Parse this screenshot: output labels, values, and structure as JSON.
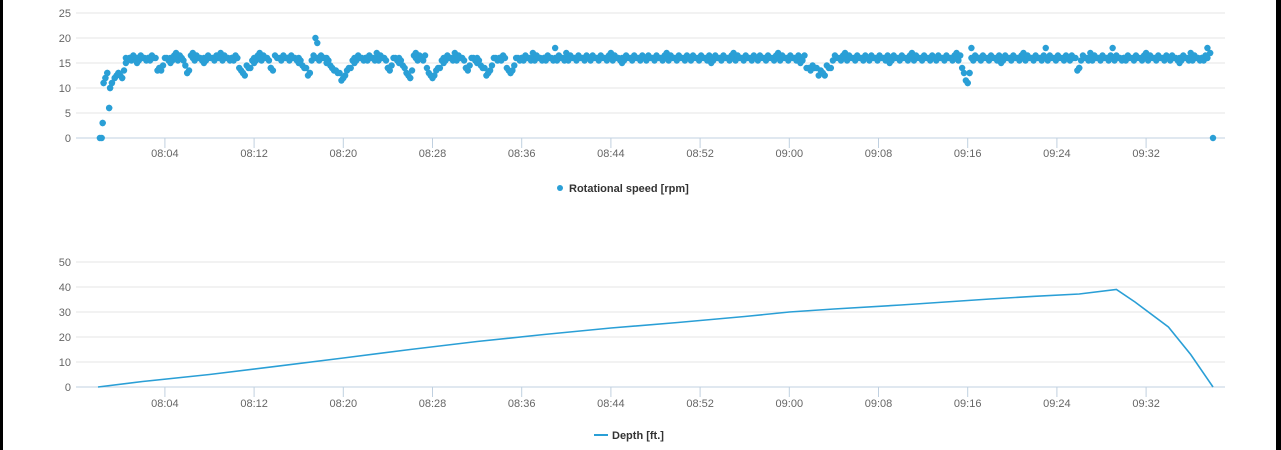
{
  "colors": {
    "series": "#2a9fd6",
    "grid": "#e6e6e6",
    "axis": "#c0d0e0",
    "background": "#ffffff"
  },
  "chart_data": [
    {
      "type": "scatter",
      "title": "",
      "xlabel": "",
      "ylabel": "",
      "x_ticks": [
        "08:04",
        "08:12",
        "08:20",
        "08:28",
        "08:36",
        "08:44",
        "08:52",
        "09:00",
        "09:08",
        "09:16",
        "09:24",
        "09:32"
      ],
      "x_range": [
        "07:58",
        "09:38"
      ],
      "ylim": [
        0,
        25
      ],
      "y_ticks": [
        0,
        5,
        10,
        15,
        20,
        25
      ],
      "grid": true,
      "legend": "bottom-center",
      "series": [
        {
          "name": "Rotational speed [rpm]",
          "points": [
            {
              "x": "07:58:10",
              "y": 0
            },
            {
              "x": "07:58:20",
              "y": 0
            },
            {
              "x": "07:58:25",
              "y": 3
            },
            {
              "x": "07:58:30",
              "y": 11
            },
            {
              "x": "07:58:40",
              "y": 12
            },
            {
              "x": "07:58:50",
              "y": 13
            },
            {
              "x": "07:59:00",
              "y": 6
            },
            {
              "x": "07:59:05",
              "y": 10
            },
            {
              "x": "07:59:15",
              "y": 11
            },
            {
              "x": "07:59:30",
              "y": 12
            },
            {
              "x": "07:59:50",
              "y": 13
            },
            {
              "x": "08:00:10",
              "y": 12
            },
            {
              "x": "08:00:30",
              "y": 15
            },
            {
              "x": "08:00:50",
              "y": 16
            },
            {
              "x": "08:01:30",
              "y": 15
            },
            {
              "x": "08:02:30",
              "y": 16
            },
            {
              "x": "08:03:30",
              "y": 14
            },
            {
              "x": "08:04:30",
              "y": 15
            },
            {
              "x": "08:05:00",
              "y": 17
            },
            {
              "x": "08:05:30",
              "y": 16
            },
            {
              "x": "08:06:00",
              "y": 13
            },
            {
              "x": "08:06:30",
              "y": 17
            },
            {
              "x": "08:07:30",
              "y": 15
            },
            {
              "x": "08:09:00",
              "y": 17
            },
            {
              "x": "08:10:00",
              "y": 16
            },
            {
              "x": "08:11:00",
              "y": 13
            },
            {
              "x": "08:12:00",
              "y": 15
            },
            {
              "x": "08:12:30",
              "y": 17
            },
            {
              "x": "08:13:30",
              "y": 14
            },
            {
              "x": "08:15:00",
              "y": 16
            },
            {
              "x": "08:16:00",
              "y": 15
            },
            {
              "x": "08:17:00",
              "y": 13
            },
            {
              "x": "08:17:30",
              "y": 20
            },
            {
              "x": "08:17:40",
              "y": 19
            },
            {
              "x": "08:18:30",
              "y": 15
            },
            {
              "x": "08:19:00",
              "y": 14
            },
            {
              "x": "08:20:00",
              "y": 12
            },
            {
              "x": "08:21:00",
              "y": 15
            },
            {
              "x": "08:22:00",
              "y": 16
            },
            {
              "x": "08:23:00",
              "y": 17
            },
            {
              "x": "08:24:00",
              "y": 14
            },
            {
              "x": "08:25:00",
              "y": 15
            },
            {
              "x": "08:26:00",
              "y": 12
            },
            {
              "x": "08:26:30",
              "y": 17
            },
            {
              "x": "08:27:00",
              "y": 16
            },
            {
              "x": "08:28:00",
              "y": 12
            },
            {
              "x": "08:29:00",
              "y": 15
            },
            {
              "x": "08:30:00",
              "y": 17
            },
            {
              "x": "08:31:00",
              "y": 14
            },
            {
              "x": "08:32:00",
              "y": 15
            },
            {
              "x": "08:33:00",
              "y": 13
            },
            {
              "x": "08:34:00",
              "y": 16
            },
            {
              "x": "08:35:00",
              "y": 13
            },
            {
              "x": "08:36:00",
              "y": 16
            },
            {
              "x": "08:37:00",
              "y": 17
            },
            {
              "x": "08:38:00",
              "y": 16
            },
            {
              "x": "08:39:00",
              "y": 18
            },
            {
              "x": "08:40:00",
              "y": 17
            },
            {
              "x": "08:42:00",
              "y": 16
            },
            {
              "x": "08:44:00",
              "y": 17
            },
            {
              "x": "08:45:00",
              "y": 15
            },
            {
              "x": "08:47:00",
              "y": 16
            },
            {
              "x": "08:49:00",
              "y": 17
            },
            {
              "x": "08:51:00",
              "y": 16
            },
            {
              "x": "08:53:00",
              "y": 15
            },
            {
              "x": "08:55:00",
              "y": 17
            },
            {
              "x": "08:57:00",
              "y": 16
            },
            {
              "x": "08:59:00",
              "y": 17
            },
            {
              "x": "09:01:00",
              "y": 15
            },
            {
              "x": "09:03:00",
              "y": 13
            },
            {
              "x": "09:05:00",
              "y": 17
            },
            {
              "x": "09:07:00",
              "y": 16
            },
            {
              "x": "09:09:00",
              "y": 15
            },
            {
              "x": "09:11:00",
              "y": 17
            },
            {
              "x": "09:13:00",
              "y": 16
            },
            {
              "x": "09:15:00",
              "y": 17
            },
            {
              "x": "09:16:00",
              "y": 11
            },
            {
              "x": "09:16:10",
              "y": 13
            },
            {
              "x": "09:16:20",
              "y": 18
            },
            {
              "x": "09:17:00",
              "y": 16
            },
            {
              "x": "09:19:00",
              "y": 15
            },
            {
              "x": "09:21:00",
              "y": 17
            },
            {
              "x": "09:23:00",
              "y": 18
            },
            {
              "x": "09:25:00",
              "y": 16
            },
            {
              "x": "09:26:00",
              "y": 14
            },
            {
              "x": "09:27:00",
              "y": 17
            },
            {
              "x": "09:29:00",
              "y": 18
            },
            {
              "x": "09:30:00",
              "y": 16
            },
            {
              "x": "09:32:00",
              "y": 17
            },
            {
              "x": "09:34:00",
              "y": 16
            },
            {
              "x": "09:35:00",
              "y": 15
            },
            {
              "x": "09:36:00",
              "y": 17
            },
            {
              "x": "09:37:00",
              "y": 16
            },
            {
              "x": "09:37:30",
              "y": 18
            },
            {
              "x": "09:37:45",
              "y": 17
            },
            {
              "x": "09:38:00",
              "y": 0
            }
          ]
        }
      ]
    },
    {
      "type": "line",
      "title": "",
      "xlabel": "",
      "ylabel": "",
      "x_ticks": [
        "08:04",
        "08:12",
        "08:20",
        "08:28",
        "08:36",
        "08:44",
        "08:52",
        "09:00",
        "09:08",
        "09:16",
        "09:24",
        "09:32"
      ],
      "x_range": [
        "07:58",
        "09:38"
      ],
      "ylim": [
        0,
        50
      ],
      "y_ticks": [
        0,
        10,
        20,
        30,
        40,
        50
      ],
      "grid": true,
      "legend": "bottom-center",
      "series": [
        {
          "name": "Depth [ft.]",
          "points": [
            {
              "x": "07:58",
              "y": 0
            },
            {
              "x": "08:02",
              "y": 2.2
            },
            {
              "x": "08:08",
              "y": 5
            },
            {
              "x": "08:14",
              "y": 8.3
            },
            {
              "x": "08:20",
              "y": 11.6
            },
            {
              "x": "08:26",
              "y": 15
            },
            {
              "x": "08:32",
              "y": 18.2
            },
            {
              "x": "08:38",
              "y": 21
            },
            {
              "x": "08:44",
              "y": 23.6
            },
            {
              "x": "08:50",
              "y": 25.8
            },
            {
              "x": "08:56",
              "y": 28.2
            },
            {
              "x": "09:00",
              "y": 30
            },
            {
              "x": "09:04",
              "y": 31.2
            },
            {
              "x": "09:10",
              "y": 32.8
            },
            {
              "x": "09:14",
              "y": 34
            },
            {
              "x": "09:18",
              "y": 35.2
            },
            {
              "x": "09:22",
              "y": 36.3
            },
            {
              "x": "09:26",
              "y": 37.2
            },
            {
              "x": "09:29:20",
              "y": 39
            },
            {
              "x": "09:31",
              "y": 34
            },
            {
              "x": "09:34",
              "y": 24
            },
            {
              "x": "09:36",
              "y": 13
            },
            {
              "x": "09:38",
              "y": 0
            }
          ]
        }
      ]
    }
  ]
}
